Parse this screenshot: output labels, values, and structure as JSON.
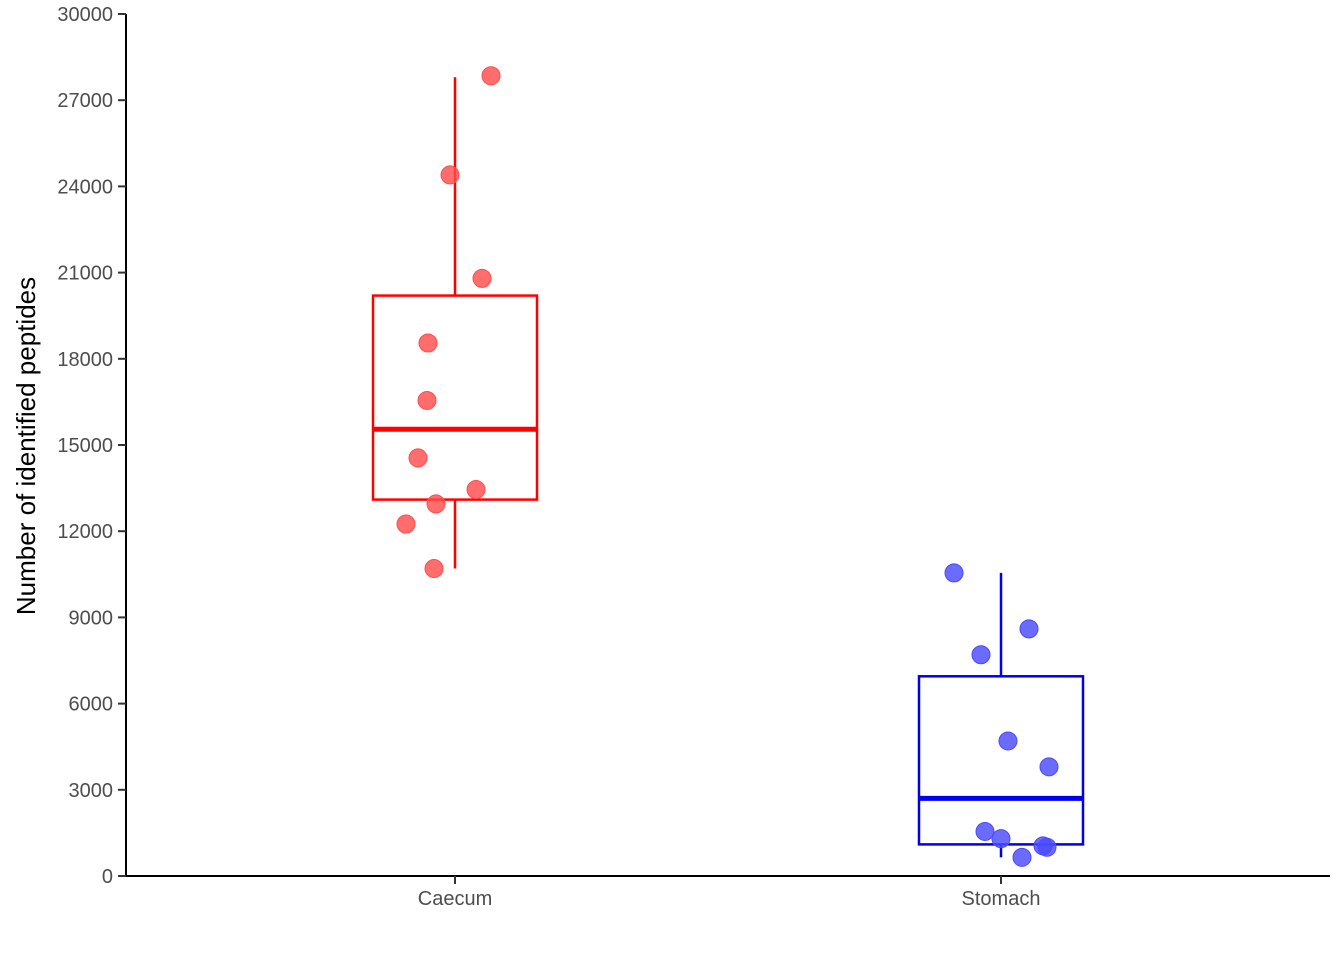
{
  "chart_data": {
    "type": "box",
    "title": "",
    "xlabel": "",
    "ylabel": "Number of identified peptides",
    "ylim": [
      0,
      30000
    ],
    "yticks": [
      0,
      3000,
      6000,
      9000,
      12000,
      15000,
      18000,
      21000,
      24000,
      27000,
      30000
    ],
    "ytick_labels": [
      "0",
      "3000",
      "6000",
      "9000",
      "12000",
      "15000",
      "18000",
      "21000",
      "24000",
      "27000",
      "30000"
    ],
    "categories": [
      "Caecum",
      "Stomach"
    ],
    "grid": false,
    "legend": "none",
    "groups": [
      {
        "category": "Caecum",
        "color": "#ff0000",
        "point_color": "#ff4d4d",
        "box": {
          "whisker_low": 10700,
          "q1": 13100,
          "median": 15550,
          "q3": 20200,
          "whisker_high": 27800
        },
        "points": [
          27850,
          24400,
          20800,
          18550,
          16550,
          14550,
          13450,
          12950,
          12250,
          10700
        ]
      },
      {
        "category": "Stomach",
        "color": "#0000ee",
        "point_color": "#4a4aff",
        "box": {
          "whisker_low": 650,
          "q1": 1100,
          "median": 2700,
          "q3": 6950,
          "whisker_high": 10550
        },
        "points": [
          10550,
          8600,
          7700,
          4700,
          3800,
          1550,
          1300,
          1050,
          1000,
          650
        ]
      }
    ]
  }
}
